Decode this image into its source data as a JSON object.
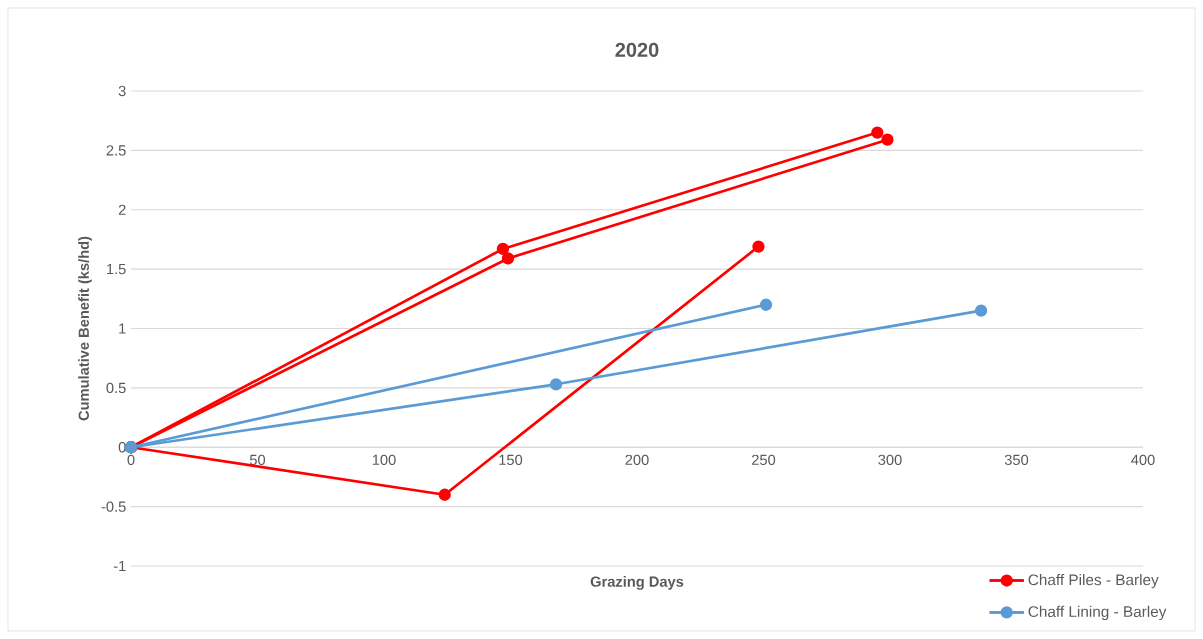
{
  "chart_data": {
    "type": "line",
    "title": "2020",
    "xlabel": "Grazing Days",
    "ylabel": "Cumulative Benefit (ks/hd)",
    "xlim": [
      0,
      400
    ],
    "xticks": [
      0,
      50,
      100,
      150,
      200,
      250,
      300,
      350,
      400
    ],
    "ylim": [
      -1,
      3
    ],
    "yticks": [
      -1,
      -0.5,
      0,
      0.5,
      1,
      1.5,
      2,
      2.5,
      3
    ],
    "grid": "y",
    "legend": "bottom right",
    "marker": "circle",
    "line_style": "solid",
    "series": [
      {
        "name": "Chaff Piles - Barley",
        "color": "#ff0000",
        "x": [
          0,
          147,
          295
        ],
        "values": [
          0,
          1.67,
          2.65
        ]
      },
      {
        "color": "#ff0000",
        "x": [
          0,
          149,
          299
        ],
        "values": [
          0,
          1.59,
          2.59
        ]
      },
      {
        "color": "#ff0000",
        "x": [
          0,
          124,
          248
        ],
        "values": [
          0,
          -0.4,
          1.69
        ]
      },
      {
        "name": "Chaff Lining - Barley",
        "color": "#5b9bd5",
        "x": [
          0,
          251
        ],
        "values": [
          0,
          1.2
        ]
      },
      {
        "color": "#5b9bd5",
        "x": [
          0,
          168,
          336
        ],
        "values": [
          0,
          0.53,
          1.15
        ]
      }
    ]
  }
}
